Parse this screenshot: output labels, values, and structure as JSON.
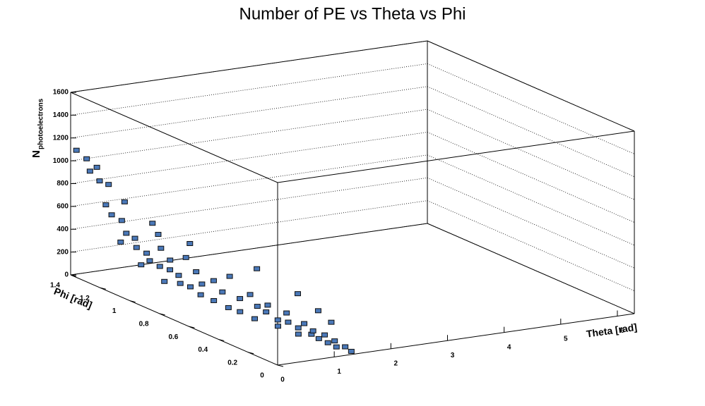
{
  "chart_data": {
    "type": "scatter3d",
    "title": "Number of PE vs Theta vs Phi",
    "xlabel": "Theta [rad]",
    "ylabel": "Phi [rad]",
    "zlabel": "N",
    "zlabel_sub": "photoelectrons",
    "xlim": [
      0,
      6.3
    ],
    "ylim": [
      0,
      1.4
    ],
    "zlim": [
      0,
      1600
    ],
    "xticks": [
      0,
      1,
      2,
      3,
      4,
      5,
      6
    ],
    "yticks": [
      0,
      0.2,
      0.4,
      0.6,
      0.8,
      1,
      1.2,
      1.4
    ],
    "zticks": [
      0,
      200,
      400,
      600,
      800,
      1000,
      1200,
      1400,
      1600
    ],
    "grid": true,
    "color": "#4a78b8",
    "x": [
      0.05,
      0.1,
      0.08,
      0.15,
      0.12,
      0.2,
      0.1,
      0.15,
      0.25,
      0.2,
      0.3,
      0.25,
      0.35,
      0.4,
      0.45,
      0.3,
      0.4,
      0.5,
      0.45,
      0.55,
      0.6,
      0.5,
      0.6,
      0.65,
      0.7,
      0.6,
      0.75,
      0.7,
      0.8,
      0.85,
      0.75,
      0.9,
      0.85,
      0.95,
      1.0,
      0.9,
      1.05,
      1.0,
      1.1,
      1.05,
      1.15,
      1.1,
      1.2,
      1.15,
      1.2,
      1.25,
      1.2,
      1.25,
      1.3,
      1.28,
      1.32,
      1.3,
      1.35,
      1.38,
      0.3,
      0.55,
      0.2,
      0.35,
      0.1,
      0.8,
      1.2,
      1.4,
      1.5,
      1.6
    ],
    "y": [
      1.38,
      1.33,
      1.3,
      1.28,
      1.25,
      1.22,
      1.2,
      1.18,
      1.15,
      1.1,
      1.08,
      1.05,
      1.02,
      1.0,
      0.98,
      0.98,
      0.95,
      0.92,
      0.9,
      0.88,
      0.85,
      0.85,
      0.82,
      0.8,
      0.78,
      0.75,
      0.72,
      0.7,
      0.68,
      0.65,
      0.62,
      0.6,
      0.58,
      0.55,
      0.52,
      0.5,
      0.48,
      0.45,
      0.42,
      0.4,
      0.38,
      0.35,
      0.32,
      0.3,
      0.28,
      0.25,
      0.22,
      0.2,
      0.18,
      0.15,
      0.12,
      0.1,
      0.06,
      0.03,
      1.15,
      1.0,
      1.0,
      0.9,
      1.1,
      0.9,
      0.6,
      0.4,
      0.3,
      0.25
    ],
    "z": [
      1100,
      1050,
      960,
      1000,
      900,
      880,
      720,
      640,
      600,
      520,
      480,
      420,
      380,
      650,
      560,
      340,
      300,
      280,
      380,
      250,
      420,
      200,
      180,
      320,
      220,
      150,
      280,
      120,
      200,
      350,
      100,
      180,
      80,
      240,
      150,
      60,
      120,
      200,
      80,
      40,
      160,
      100,
      60,
      20,
      120,
      40,
      90,
      30,
      70,
      20,
      50,
      10,
      30,
      5,
      760,
      420,
      300,
      200,
      450,
      500,
      420,
      300,
      200,
      120
    ]
  }
}
